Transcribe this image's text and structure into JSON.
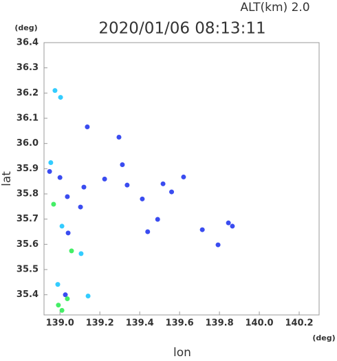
{
  "chart_data": {
    "type": "scatter",
    "title": "2020/01/06 08:13:11",
    "subtitle": "ALT(km) 2.0",
    "x_label": "lon",
    "y_label": "lat",
    "x_unit": "(deg)",
    "y_unit": "(deg)",
    "x": [
      138.975,
      139.003,
      139.137,
      138.954,
      138.948,
      139.0,
      138.968,
      139.037,
      139.12,
      139.01,
      139.041,
      139.058,
      139.106,
      138.989,
      139.027,
      139.037,
      139.141,
      138.992,
      139.01,
      139.296,
      139.313,
      139.337,
      139.517,
      139.413,
      139.49,
      139.44,
      139.56,
      139.714,
      139.845,
      139.865,
      139.793,
      139.224,
      139.103,
      139.62
    ],
    "y": [
      36.21,
      36.183,
      36.066,
      35.924,
      35.889,
      35.865,
      35.759,
      35.789,
      35.827,
      35.672,
      35.645,
      35.574,
      35.563,
      35.441,
      35.4,
      35.384,
      35.395,
      35.359,
      35.338,
      36.025,
      35.916,
      35.835,
      35.84,
      35.78,
      35.699,
      35.65,
      35.808,
      35.658,
      35.685,
      35.672,
      35.598,
      35.859,
      35.748,
      35.867
    ],
    "colors": [
      "#33ccff",
      "#33ccff",
      "#3a4cf0",
      "#33ccff",
      "#3a4cf0",
      "#3a4cf0",
      "#44ee66",
      "#3a4cf0",
      "#3a4cf0",
      "#33ccff",
      "#3a4cf0",
      "#44ee66",
      "#33ccff",
      "#33ccff",
      "#3a4cf0",
      "#44ee66",
      "#33ccff",
      "#44ee66",
      "#44ee66",
      "#3a4cf0",
      "#3a4cf0",
      "#3a4cf0",
      "#3a4cf0",
      "#3a4cf0",
      "#3a4cf0",
      "#3a4cf0",
      "#3a4cf0",
      "#3a4cf0",
      "#3a4cf0",
      "#3a4cf0",
      "#3a4cf0",
      "#3a4cf0",
      "#3a4cf0",
      "#3a4cf0"
    ],
    "xlim": [
      138.92,
      140.3
    ],
    "ylim": [
      35.32,
      36.4
    ],
    "xticks": [
      {
        "value": 139,
        "label": "139.0"
      },
      139.2,
      139.4,
      139.6,
      139.8,
      {
        "value": 140,
        "label": "140.0"
      },
      140.2
    ],
    "yticks": [
      35.4,
      35.5,
      35.6,
      35.7,
      35.8,
      35.9,
      {
        "value": 36,
        "label": "36.0"
      },
      36.1,
      36.2,
      36.3,
      36.4
    ]
  }
}
